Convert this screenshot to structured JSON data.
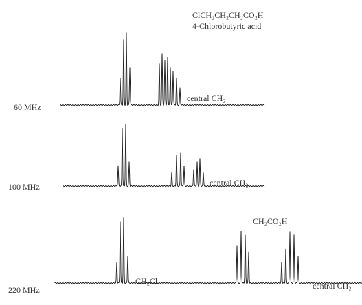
{
  "header": {
    "formula": "ClCH₂CH₂CH₂CO₂H",
    "name": "4-Chlorobutyric acid"
  },
  "spectra": [
    {
      "label": "60 MHz",
      "annotations": [
        "central CH₂"
      ]
    },
    {
      "label": "100 MHz",
      "annotations": [
        "central CH₂"
      ]
    },
    {
      "label": "220 MHz",
      "annotations": [
        "CH₂Cl",
        "CH₂CO₂H",
        "central CH₂"
      ]
    }
  ]
}
